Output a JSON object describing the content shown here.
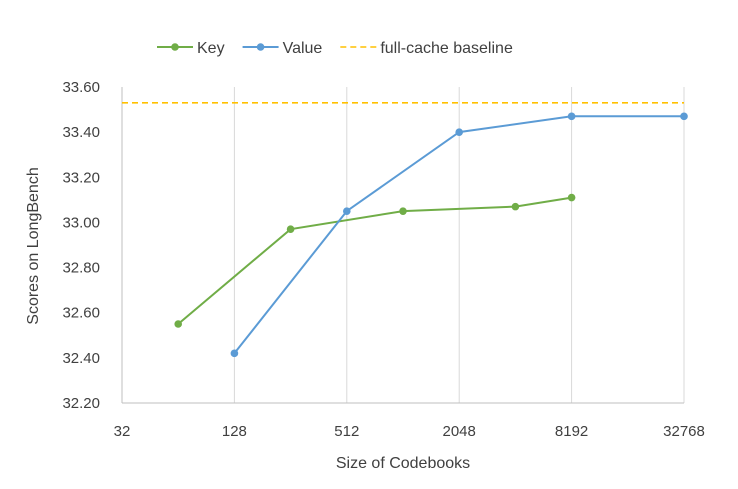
{
  "chart_data": {
    "type": "line",
    "title": "",
    "xlabel": "Size of Codebooks",
    "ylabel": "Scores on LongBench",
    "x_scale": "log2",
    "x_ticks": [
      32,
      128,
      512,
      2048,
      8192,
      32768
    ],
    "xlim": [
      32,
      32768
    ],
    "ylim": [
      32.2,
      33.6
    ],
    "y_ticks": [
      "32.20",
      "32.40",
      "32.60",
      "32.80",
      "33.00",
      "33.20",
      "33.40",
      "33.60"
    ],
    "grid": "vertical",
    "legend_position": "top",
    "series": [
      {
        "name": "Key",
        "color": "#70ad47",
        "style": "solid-marker",
        "points": [
          {
            "x": 64,
            "y": 32.55
          },
          {
            "x": 256,
            "y": 32.97
          },
          {
            "x": 1024,
            "y": 33.05
          },
          {
            "x": 4096,
            "y": 33.07
          },
          {
            "x": 8192,
            "y": 33.11
          }
        ]
      },
      {
        "name": "Value",
        "color": "#5b9bd5",
        "style": "solid-marker",
        "points": [
          {
            "x": 128,
            "y": 32.42
          },
          {
            "x": 512,
            "y": 33.05
          },
          {
            "x": 2048,
            "y": 33.4
          },
          {
            "x": 8192,
            "y": 33.47
          },
          {
            "x": 32768,
            "y": 33.47
          }
        ]
      },
      {
        "name": "full-cache baseline",
        "color": "#ffc000",
        "style": "dashed",
        "value": 33.53
      }
    ]
  }
}
